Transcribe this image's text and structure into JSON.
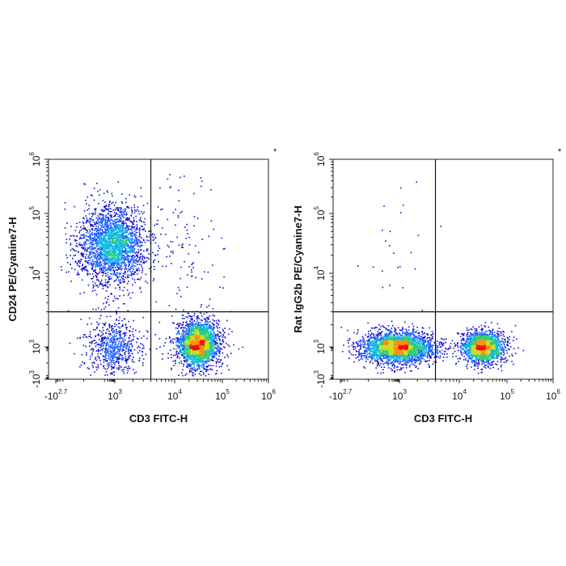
{
  "chart_data": [
    {
      "type": "scatter",
      "title": "",
      "xlabel": "CD3 FITC-H",
      "ylabel": "CD24 PE/Cyanine7-H",
      "corner_mark": "*",
      "x_scale": "biexponential",
      "y_scale": "biexponential",
      "xlim": [
        -501,
        1000000
      ],
      "ylim": [
        -1000,
        1000000
      ],
      "x_ticks": [
        {
          "base": "-10",
          "exp": "2.7"
        },
        {
          "base": "10",
          "exp": "3"
        },
        {
          "base": "10",
          "exp": "4"
        },
        {
          "base": "10",
          "exp": "5"
        },
        {
          "base": "10",
          "exp": "6"
        }
      ],
      "y_ticks": [
        {
          "base": "-10",
          "exp": "3"
        },
        {
          "base": "10",
          "exp": "3"
        },
        {
          "base": "10",
          "exp": "4"
        },
        {
          "base": "10",
          "exp": "5"
        },
        {
          "base": "10",
          "exp": "6"
        }
      ],
      "gate": {
        "x": 4000,
        "y": 3000
      },
      "colormap": [
        "#1010d0",
        "#2060ff",
        "#10b8e0",
        "#30d070",
        "#c8e020",
        "#ff9010",
        "#ee1010"
      ],
      "populations": [
        {
          "x_center": 500,
          "y_center": 30000,
          "n": 2600
        },
        {
          "x_center": 600,
          "y_center": 1000,
          "n": 650
        },
        {
          "x_center": 30000,
          "y_center": 1100,
          "n": 2500
        },
        {
          "x_center": 15000,
          "y_center": 30000,
          "n": 110
        }
      ]
    },
    {
      "type": "scatter",
      "title": "",
      "xlabel": "CD3 FITC-H",
      "ylabel": "Rat IgG2b PE/Cyanine7-H",
      "corner_mark": "*",
      "x_scale": "biexponential",
      "y_scale": "biexponential",
      "xlim": [
        -501,
        1000000
      ],
      "ylim": [
        -1000,
        1000000
      ],
      "x_ticks": [
        {
          "base": "-10",
          "exp": "2.7"
        },
        {
          "base": "10",
          "exp": "3"
        },
        {
          "base": "10",
          "exp": "4"
        },
        {
          "base": "10",
          "exp": "5"
        },
        {
          "base": "10",
          "exp": "6"
        }
      ],
      "y_ticks": [
        {
          "base": "-10",
          "exp": "3"
        },
        {
          "base": "10",
          "exp": "3"
        },
        {
          "base": "10",
          "exp": "4"
        },
        {
          "base": "10",
          "exp": "5"
        },
        {
          "base": "10",
          "exp": "6"
        }
      ],
      "gate": {
        "x": 4000,
        "y": 3000
      },
      "colormap": [
        "#1010d0",
        "#2060ff",
        "#10b8e0",
        "#30d070",
        "#c8e020",
        "#ff9010",
        "#ee1010"
      ],
      "populations": [
        {
          "x_center": 700,
          "y_center": 1000,
          "n": 3000
        },
        {
          "x_center": 30000,
          "y_center": 1000,
          "n": 2000
        },
        {
          "x_center": 1000,
          "y_center": 40000,
          "n": 25
        }
      ]
    }
  ]
}
